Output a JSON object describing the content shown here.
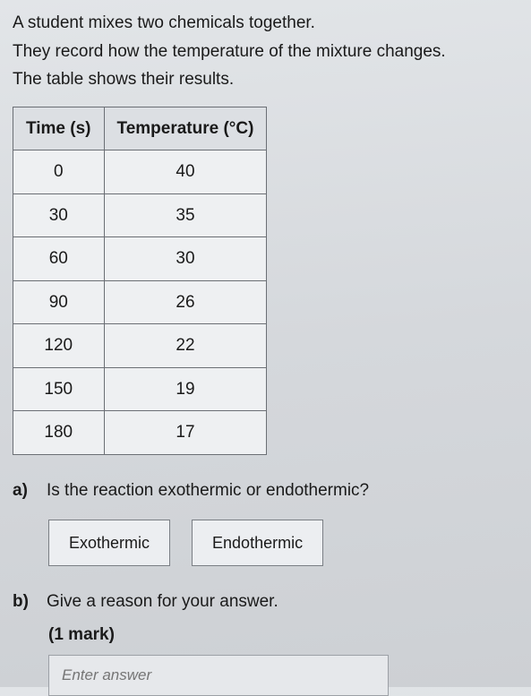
{
  "intro": {
    "line1": "A student mixes two chemicals together.",
    "line2": "They record how the temperature of the mixture changes.",
    "line3": "The table shows their results."
  },
  "table": {
    "header_time": "Time (s)",
    "header_temp": "Temperature (°C)",
    "rows": [
      {
        "time": "0",
        "temp": "40"
      },
      {
        "time": "30",
        "temp": "35"
      },
      {
        "time": "60",
        "temp": "30"
      },
      {
        "time": "90",
        "temp": "26"
      },
      {
        "time": "120",
        "temp": "22"
      },
      {
        "time": "150",
        "temp": "19"
      },
      {
        "time": "180",
        "temp": "17"
      }
    ]
  },
  "qa": {
    "label": "a)",
    "text": "Is the reaction exothermic or endothermic?",
    "choice1": "Exothermic",
    "choice2": "Endothermic"
  },
  "qb": {
    "label": "b)",
    "text": "Give a reason for your answer.",
    "marks": "(1 mark)",
    "placeholder": "Enter answer"
  },
  "style": {
    "page_bg": "#d9dce0",
    "text_color": "#1a1a1a",
    "border_color": "#6b6f75",
    "header_bg": "#dcdfe3",
    "cell_bg": "#eef0f2",
    "choice_bg": "#eceef1",
    "input_bg": "#e6e8eb",
    "placeholder_color": "#8a8f96",
    "body_fontsize": 19,
    "table_fontsize": 19,
    "choice_fontsize": 18
  }
}
